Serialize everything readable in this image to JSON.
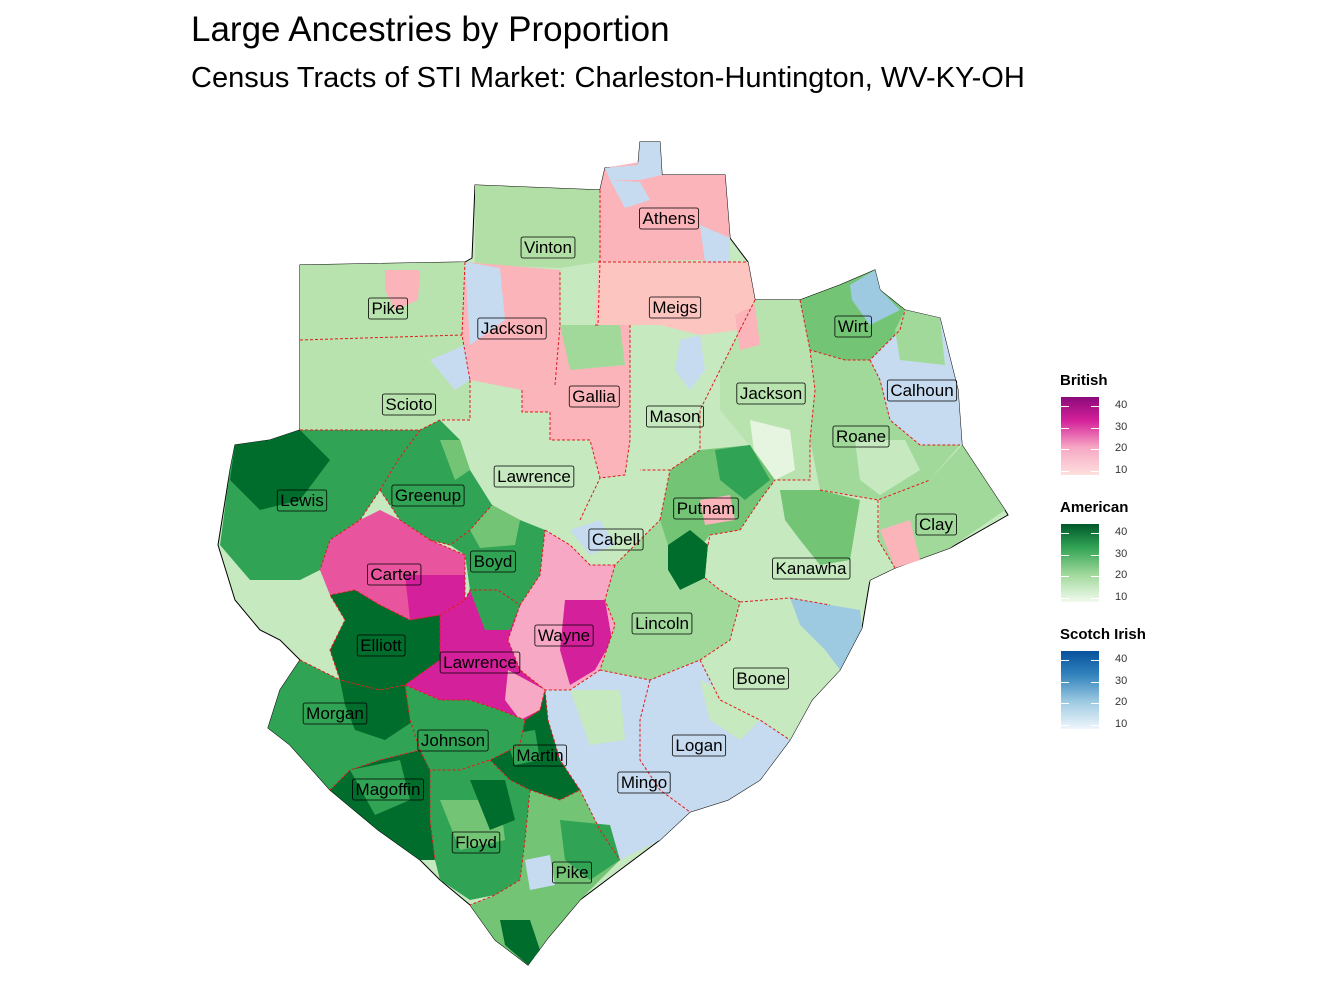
{
  "title": "Large Ancestries by Proportion",
  "subtitle": "Census Tracts of STI Market: Charleston-Huntington, WV-KY-OH",
  "colors": {
    "british": [
      "#fde0dd",
      "#f7a8c4",
      "#e8559e",
      "#d4209a",
      "#8b0a7a"
    ],
    "american": [
      "#e5f5e0",
      "#c7e9c0",
      "#74c476",
      "#31a354",
      "#006d2c"
    ],
    "scotch_irish": [
      "#deebf7",
      "#c6dbef",
      "#6baed6",
      "#3182bd",
      "#08519c"
    ],
    "boundary": "#e31a1c"
  },
  "legends": [
    {
      "title": "British",
      "ticks": [
        "40",
        "30",
        "20",
        "10"
      ]
    },
    {
      "title": "American",
      "ticks": [
        "40",
        "30",
        "20",
        "10"
      ]
    },
    {
      "title": "Scotch Irish",
      "ticks": [
        "40",
        "30",
        "20",
        "10"
      ]
    }
  ],
  "counties": [
    {
      "name": "Athens",
      "ancestry": "British",
      "level": 2
    },
    {
      "name": "Vinton",
      "ancestry": "American",
      "level": 2
    },
    {
      "name": "Pike",
      "ancestry": "American",
      "level": 1
    },
    {
      "name": "Jackson",
      "ancestry": "British",
      "level": 1
    },
    {
      "name": "Meigs",
      "ancestry": "British",
      "level": 1
    },
    {
      "name": "Wirt",
      "ancestry": "American",
      "level": 2
    },
    {
      "name": "Calhoun",
      "ancestry": "Scotch Irish",
      "level": 2
    },
    {
      "name": "Gallia",
      "ancestry": "British",
      "level": 1
    },
    {
      "name": "Jackson",
      "ancestry": "American",
      "level": 2
    },
    {
      "name": "Scioto",
      "ancestry": "American",
      "level": 1
    },
    {
      "name": "Mason",
      "ancestry": "American",
      "level": 1
    },
    {
      "name": "Roane",
      "ancestry": "American",
      "level": 2
    },
    {
      "name": "Lawrence",
      "ancestry": "American",
      "level": 2
    },
    {
      "name": "Lewis",
      "ancestry": "American",
      "level": 4
    },
    {
      "name": "Greenup",
      "ancestry": "American",
      "level": 3
    },
    {
      "name": "Putnam",
      "ancestry": "American",
      "level": 3
    },
    {
      "name": "Clay",
      "ancestry": "American",
      "level": 2
    },
    {
      "name": "Cabell",
      "ancestry": "American",
      "level": 1
    },
    {
      "name": "Boyd",
      "ancestry": "American",
      "level": 3
    },
    {
      "name": "Kanawha",
      "ancestry": "American",
      "level": 1
    },
    {
      "name": "Carter",
      "ancestry": "British",
      "level": 3
    },
    {
      "name": "Lincoln",
      "ancestry": "American",
      "level": 2
    },
    {
      "name": "Wayne",
      "ancestry": "British",
      "level": 3
    },
    {
      "name": "Elliott",
      "ancestry": "American",
      "level": 4
    },
    {
      "name": "Lawrence",
      "ancestry": "British",
      "level": 3
    },
    {
      "name": "Boone",
      "ancestry": "American",
      "level": 1
    },
    {
      "name": "Morgan",
      "ancestry": "American",
      "level": 4
    },
    {
      "name": "Johnson",
      "ancestry": "American",
      "level": 3
    },
    {
      "name": "Martin",
      "ancestry": "American",
      "level": 4
    },
    {
      "name": "Logan",
      "ancestry": "Scotch Irish",
      "level": 1
    },
    {
      "name": "Mingo",
      "ancestry": "Scotch Irish",
      "level": 1
    },
    {
      "name": "Magoffin",
      "ancestry": "American",
      "level": 4
    },
    {
      "name": "Floyd",
      "ancestry": "American",
      "level": 3
    },
    {
      "name": "Pike",
      "ancestry": "American",
      "level": 3
    }
  ]
}
